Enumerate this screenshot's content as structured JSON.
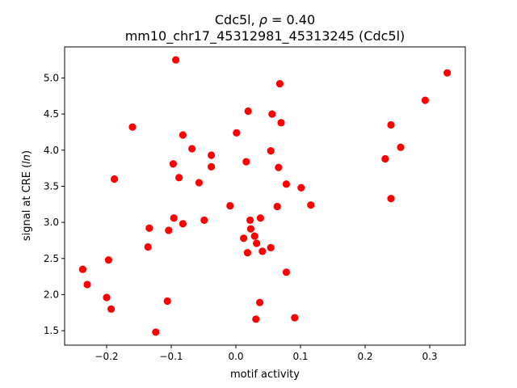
{
  "chart_data": {
    "type": "scatter",
    "title_line1_prefix": "Cdc5l, ",
    "title_line1_symbol": "ρ",
    "title_line1_suffix": " = 0.40",
    "title_line2": "mm10_chr17_45312981_45313245 (Cdc5l)",
    "xlabel": "motif activity",
    "ylabel_prefix": "signal at CRE (",
    "ylabel_italic": "ln",
    "ylabel_suffix": ")",
    "xlim": [
      -0.265,
      0.355
    ],
    "ylim": [
      1.3,
      5.43
    ],
    "xticks": [
      -0.2,
      -0.1,
      0.0,
      0.1,
      0.2,
      0.3
    ],
    "xtick_labels": [
      "−0.2",
      "−0.1",
      "0.0",
      "0.1",
      "0.2",
      "0.3"
    ],
    "yticks": [
      1.5,
      2.0,
      2.5,
      3.0,
      3.5,
      4.0,
      4.5,
      5.0
    ],
    "ytick_labels": [
      "1.5",
      "2.0",
      "2.5",
      "3.0",
      "3.5",
      "4.0",
      "4.5",
      "5.0"
    ],
    "marker_color": "#ff0000",
    "grid": false,
    "points": [
      {
        "x": -0.093,
        "y": 5.25
      },
      {
        "x": 0.068,
        "y": 4.92
      },
      {
        "x": 0.327,
        "y": 5.07
      },
      {
        "x": 0.293,
        "y": 4.69
      },
      {
        "x": 0.019,
        "y": 4.54
      },
      {
        "x": 0.056,
        "y": 4.5
      },
      {
        "x": 0.07,
        "y": 4.38
      },
      {
        "x": -0.16,
        "y": 4.32
      },
      {
        "x": 0.24,
        "y": 4.35
      },
      {
        "x": 0.001,
        "y": 4.24
      },
      {
        "x": -0.082,
        "y": 4.21
      },
      {
        "x": -0.068,
        "y": 4.02
      },
      {
        "x": 0.054,
        "y": 3.99
      },
      {
        "x": 0.255,
        "y": 4.04
      },
      {
        "x": -0.038,
        "y": 3.93
      },
      {
        "x": 0.231,
        "y": 3.88
      },
      {
        "x": 0.016,
        "y": 3.84
      },
      {
        "x": -0.097,
        "y": 3.81
      },
      {
        "x": -0.038,
        "y": 3.77
      },
      {
        "x": 0.066,
        "y": 3.76
      },
      {
        "x": -0.088,
        "y": 3.62
      },
      {
        "x": -0.188,
        "y": 3.6
      },
      {
        "x": -0.057,
        "y": 3.55
      },
      {
        "x": 0.078,
        "y": 3.53
      },
      {
        "x": 0.101,
        "y": 3.48
      },
      {
        "x": 0.24,
        "y": 3.33
      },
      {
        "x": 0.116,
        "y": 3.24
      },
      {
        "x": -0.009,
        "y": 3.23
      },
      {
        "x": 0.064,
        "y": 3.22
      },
      {
        "x": -0.096,
        "y": 3.06
      },
      {
        "x": 0.038,
        "y": 3.06
      },
      {
        "x": -0.049,
        "y": 3.03
      },
      {
        "x": 0.022,
        "y": 3.03
      },
      {
        "x": -0.082,
        "y": 2.98
      },
      {
        "x": -0.134,
        "y": 2.92
      },
      {
        "x": 0.023,
        "y": 2.91
      },
      {
        "x": -0.104,
        "y": 2.89
      },
      {
        "x": 0.029,
        "y": 2.81
      },
      {
        "x": 0.012,
        "y": 2.78
      },
      {
        "x": 0.032,
        "y": 2.71
      },
      {
        "x": -0.136,
        "y": 2.66
      },
      {
        "x": 0.054,
        "y": 2.65
      },
      {
        "x": 0.041,
        "y": 2.6
      },
      {
        "x": 0.018,
        "y": 2.58
      },
      {
        "x": -0.197,
        "y": 2.48
      },
      {
        "x": -0.237,
        "y": 2.35
      },
      {
        "x": 0.078,
        "y": 2.31
      },
      {
        "x": -0.23,
        "y": 2.14
      },
      {
        "x": -0.2,
        "y": 1.96
      },
      {
        "x": -0.106,
        "y": 1.91
      },
      {
        "x": 0.037,
        "y": 1.89
      },
      {
        "x": -0.193,
        "y": 1.8
      },
      {
        "x": 0.091,
        "y": 1.68
      },
      {
        "x": 0.031,
        "y": 1.66
      },
      {
        "x": -0.124,
        "y": 1.48
      }
    ]
  }
}
